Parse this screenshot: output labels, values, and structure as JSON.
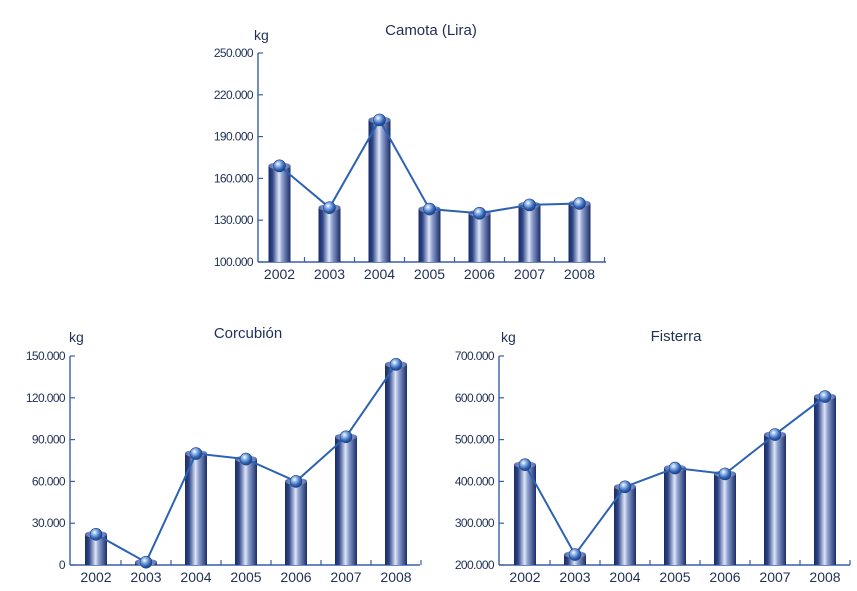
{
  "chart_data": [
    {
      "type": "bar",
      "title": "Camota (Lira)",
      "ylabel": "kg",
      "xlabel": "",
      "categories": [
        "2002",
        "2003",
        "2004",
        "2005",
        "2006",
        "2007",
        "2008"
      ],
      "values": [
        169000,
        139000,
        202000,
        138000,
        135000,
        141000,
        142000
      ],
      "ylim": [
        100000,
        250000
      ],
      "yticks": [
        "100.000",
        "130.000",
        "160.000",
        "190.000",
        "220.000",
        "250.000"
      ],
      "overlay": "line with markers",
      "grid": false
    },
    {
      "type": "bar",
      "title": "Corcubión",
      "ylabel": "kg",
      "xlabel": "",
      "categories": [
        "2002",
        "2003",
        "2004",
        "2005",
        "2006",
        "2007",
        "2008"
      ],
      "values": [
        22000,
        2000,
        80000,
        76000,
        60000,
        92000,
        144000
      ],
      "ylim": [
        0,
        150000
      ],
      "yticks": [
        "0",
        "30.000",
        "60.000",
        "90.000",
        "120.000",
        "150.000"
      ],
      "overlay": "line with markers",
      "grid": false
    },
    {
      "type": "bar",
      "title": "Fisterra",
      "ylabel": "kg",
      "xlabel": "",
      "categories": [
        "2002",
        "2003",
        "2004",
        "2005",
        "2006",
        "2007",
        "2008"
      ],
      "values": [
        440000,
        225000,
        387000,
        432000,
        418000,
        512000,
        603000
      ],
      "ylim": [
        200000,
        700000
      ],
      "yticks": [
        "200.000",
        "300.000",
        "400.000",
        "500.000",
        "600.000",
        "700.000"
      ],
      "overlay": "line with markers",
      "grid": false
    }
  ],
  "colors": {
    "bar_dark": "#1a2c66",
    "bar_light": "#dfe6f8",
    "line": "#2d62b3",
    "text": "#1f2f55",
    "axis": "#3a5da8"
  }
}
